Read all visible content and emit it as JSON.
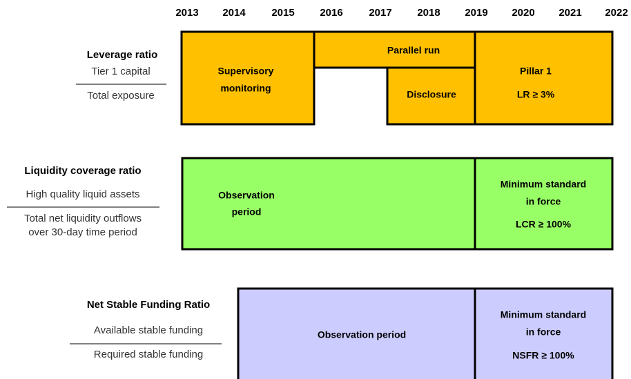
{
  "years": [
    "2013",
    "2014",
    "2015",
    "2016",
    "2017",
    "2018",
    "2019",
    "2020",
    "2021",
    "2022"
  ],
  "rows": [
    {
      "title": "Leverage ratio",
      "numerator": "Tier 1 capital",
      "denominator": "Total exposure",
      "phases": [
        {
          "lines": [
            "Supervisory",
            "monitoring"
          ]
        },
        {
          "lines": [
            "Parallel run"
          ]
        },
        {
          "lines": [
            "Disclosure"
          ]
        },
        {
          "lines": [
            "Pillar 1",
            "LR ≥ 3%"
          ]
        }
      ]
    },
    {
      "title": "Liquidity coverage ratio",
      "numerator": "High quality liquid assets",
      "denominator": [
        "Total net liquidity outflows",
        "over 30-day time period"
      ],
      "phases": [
        {
          "lines": [
            "Observation",
            "period"
          ]
        },
        {
          "lines": [
            "Minimum standard",
            "in force",
            "LCR ≥ 100%"
          ]
        }
      ]
    },
    {
      "title": "Net Stable Funding Ratio",
      "numerator": "Available stable funding",
      "denominator": "Required stable funding",
      "phases": [
        {
          "lines": [
            "Observation period"
          ]
        },
        {
          "lines": [
            "Minimum standard",
            "in force",
            "NSFR ≥ 100%"
          ]
        }
      ]
    }
  ]
}
